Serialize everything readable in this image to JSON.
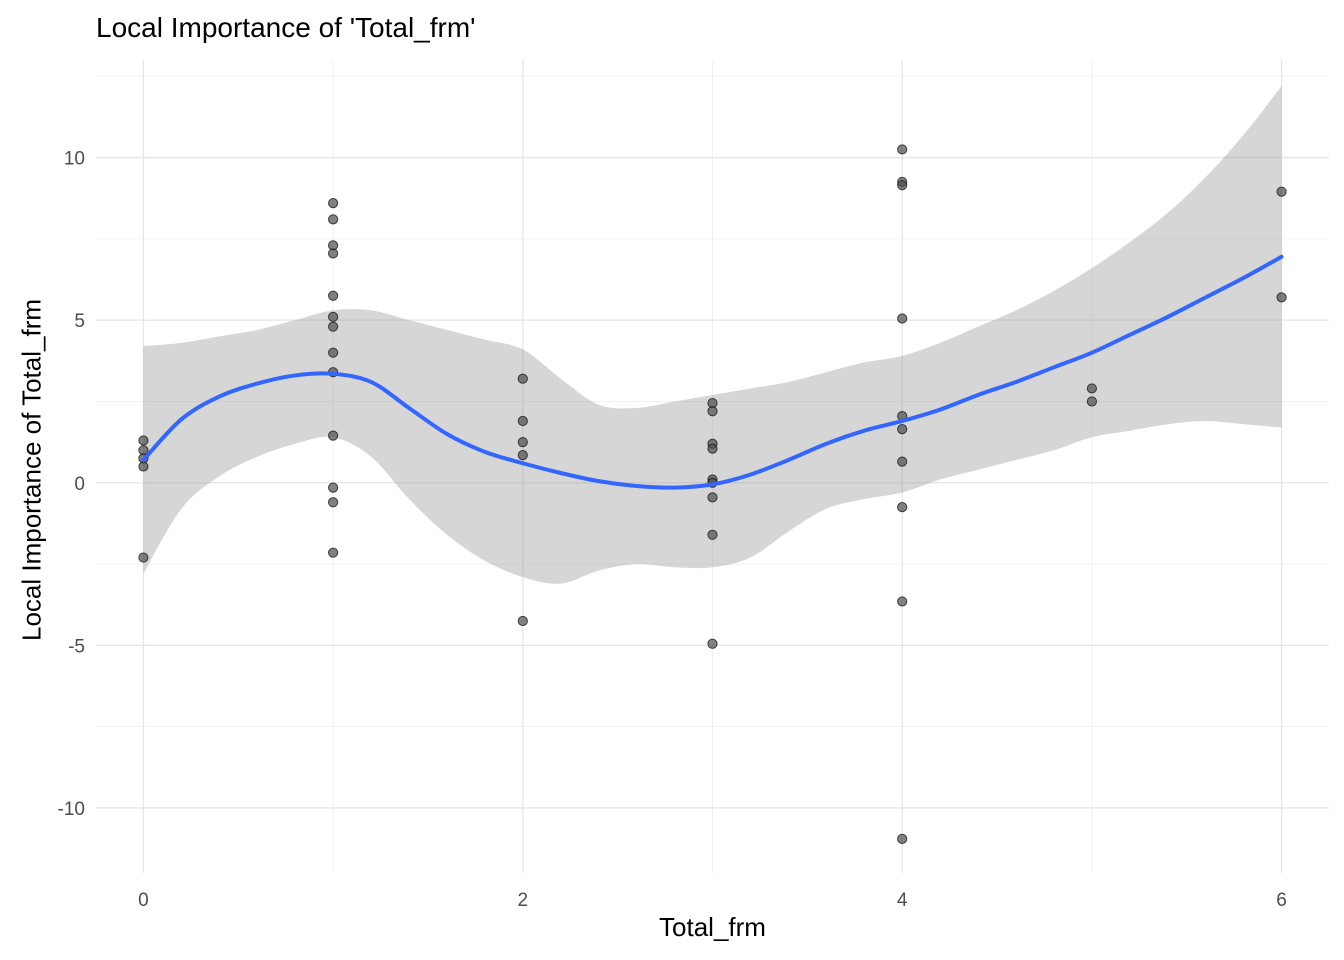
{
  "chart_data": {
    "type": "scatter",
    "title": "Local Importance of 'Total_frm'",
    "xlabel": "Total_frm",
    "ylabel": "Local Importance of Total_frm",
    "xlim": [
      -0.25,
      6.25
    ],
    "ylim": [
      -12,
      13
    ],
    "x_ticks": [
      0,
      2,
      4,
      6
    ],
    "x_tick_labels": [
      "0",
      "2",
      "4",
      "6"
    ],
    "y_ticks": [
      -10,
      -5,
      0,
      5,
      10
    ],
    "y_tick_labels": [
      "-10",
      "-5",
      "0",
      "5",
      "10"
    ],
    "grid": true,
    "legend": "none",
    "series": [
      {
        "type": "scatter",
        "color": "#4d4d4d",
        "opacity": 0.7,
        "points": [
          {
            "x": 0,
            "y": 1.3
          },
          {
            "x": 0,
            "y": 1.0
          },
          {
            "x": 0,
            "y": 0.75
          },
          {
            "x": 0,
            "y": 0.5
          },
          {
            "x": 0,
            "y": -2.3
          },
          {
            "x": 1,
            "y": 8.6
          },
          {
            "x": 1,
            "y": 8.1
          },
          {
            "x": 1,
            "y": 7.3
          },
          {
            "x": 1,
            "y": 7.05
          },
          {
            "x": 1,
            "y": 5.75
          },
          {
            "x": 1,
            "y": 5.1
          },
          {
            "x": 1,
            "y": 4.8
          },
          {
            "x": 1,
            "y": 4.0
          },
          {
            "x": 1,
            "y": 3.4
          },
          {
            "x": 1,
            "y": 1.45
          },
          {
            "x": 1,
            "y": -0.15
          },
          {
            "x": 1,
            "y": -0.6
          },
          {
            "x": 1,
            "y": -2.15
          },
          {
            "x": 2,
            "y": 3.2
          },
          {
            "x": 2,
            "y": 1.9
          },
          {
            "x": 2,
            "y": 1.25
          },
          {
            "x": 2,
            "y": 0.85
          },
          {
            "x": 2,
            "y": -4.25
          },
          {
            "x": 3,
            "y": 2.45
          },
          {
            "x": 3,
            "y": 2.2
          },
          {
            "x": 3,
            "y": 1.2
          },
          {
            "x": 3,
            "y": 1.05
          },
          {
            "x": 3,
            "y": 0.1
          },
          {
            "x": 3,
            "y": 0.0
          },
          {
            "x": 3,
            "y": -0.45
          },
          {
            "x": 3,
            "y": -1.6
          },
          {
            "x": 3,
            "y": -4.95
          },
          {
            "x": 4,
            "y": 10.25
          },
          {
            "x": 4,
            "y": 9.25
          },
          {
            "x": 4,
            "y": 9.15
          },
          {
            "x": 4,
            "y": 5.05
          },
          {
            "x": 4,
            "y": 2.05
          },
          {
            "x": 4,
            "y": 1.65
          },
          {
            "x": 4,
            "y": 0.65
          },
          {
            "x": 4,
            "y": -0.75
          },
          {
            "x": 4,
            "y": -3.65
          },
          {
            "x": 4,
            "y": -10.95
          },
          {
            "x": 5,
            "y": 2.9
          },
          {
            "x": 5,
            "y": 2.5
          },
          {
            "x": 6,
            "y": 8.95
          },
          {
            "x": 6,
            "y": 5.7
          }
        ]
      },
      {
        "type": "line",
        "color": "#3366ff",
        "x": [
          0,
          0.2,
          0.4,
          0.6,
          0.8,
          1.0,
          1.2,
          1.4,
          1.6,
          1.8,
          2.0,
          2.2,
          2.4,
          2.6,
          2.8,
          3.0,
          3.2,
          3.4,
          3.6,
          3.8,
          4.0,
          4.2,
          4.4,
          4.6,
          4.8,
          5.0,
          5.2,
          5.4,
          5.6,
          5.8,
          6.0
        ],
        "y": [
          0.7,
          1.95,
          2.65,
          3.05,
          3.3,
          3.35,
          3.1,
          2.3,
          1.5,
          0.95,
          0.6,
          0.3,
          0.05,
          -0.1,
          -0.15,
          -0.05,
          0.25,
          0.7,
          1.2,
          1.6,
          1.9,
          2.25,
          2.7,
          3.1,
          3.55,
          4.0,
          4.55,
          5.1,
          5.7,
          6.3,
          6.95
        ]
      },
      {
        "type": "area",
        "color": "#999999",
        "opacity": 0.4,
        "x": [
          0,
          0.2,
          0.4,
          0.6,
          0.8,
          1.0,
          1.2,
          1.4,
          1.6,
          1.8,
          2.0,
          2.2,
          2.4,
          2.6,
          2.8,
          3.0,
          3.2,
          3.4,
          3.6,
          3.8,
          4.0,
          4.2,
          4.4,
          4.6,
          4.8,
          5.0,
          5.2,
          5.4,
          5.6,
          5.8,
          6.0
        ],
        "upper": [
          4.2,
          4.3,
          4.5,
          4.7,
          5.0,
          5.3,
          5.3,
          5.0,
          4.7,
          4.4,
          4.1,
          3.2,
          2.4,
          2.3,
          2.5,
          2.7,
          2.9,
          3.1,
          3.4,
          3.7,
          3.9,
          4.3,
          4.8,
          5.3,
          5.9,
          6.6,
          7.4,
          8.3,
          9.4,
          10.7,
          12.2
        ],
        "lower": [
          -2.8,
          -0.8,
          0.2,
          0.8,
          1.2,
          1.4,
          0.8,
          -0.5,
          -1.6,
          -2.4,
          -2.9,
          -3.1,
          -2.7,
          -2.5,
          -2.6,
          -2.6,
          -2.3,
          -1.5,
          -0.8,
          -0.5,
          -0.3,
          0.1,
          0.4,
          0.7,
          1.0,
          1.4,
          1.6,
          1.8,
          1.9,
          1.8,
          1.7
        ]
      }
    ]
  }
}
